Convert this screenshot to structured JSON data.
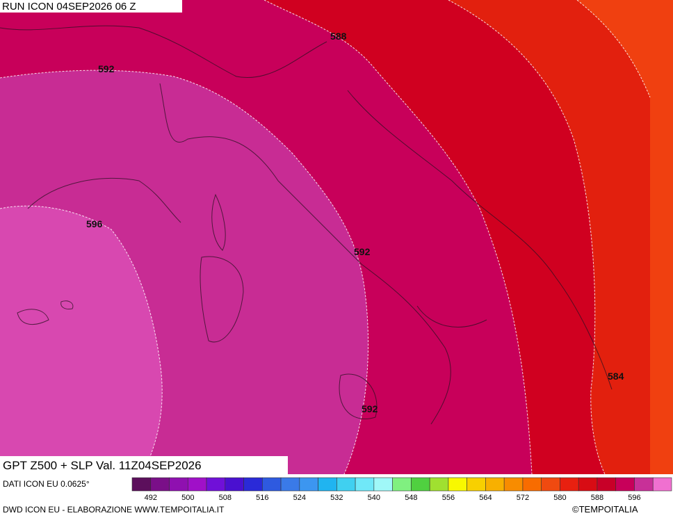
{
  "header": {
    "run": "RUN ICON 04SEP2026 06 Z"
  },
  "contour_labels": [
    "588",
    "592",
    "596",
    "592",
    "592",
    "584"
  ],
  "caption": {
    "title": "GPT Z500 + SLP Val. 11Z04SEP2026",
    "source": "DATI ICON EU 0.0625°"
  },
  "colorbar": {
    "lim": [
      488,
      604
    ],
    "ticks": [
      492,
      500,
      508,
      516,
      524,
      532,
      540,
      548,
      556,
      564,
      572,
      580,
      588,
      596
    ],
    "colors": [
      "#5c0f5c",
      "#7a0f88",
      "#8f10b0",
      "#a010c8",
      "#7010d8",
      "#4a10d0",
      "#2a2ad8",
      "#2e5ae0",
      "#3a7ae8",
      "#3c96f0",
      "#20b4f0",
      "#40d0f0",
      "#70e8f8",
      "#a0f8f8",
      "#80f080",
      "#50d040",
      "#a0e030",
      "#f8f800",
      "#f8d000",
      "#f8b000",
      "#f88c00",
      "#f86c00",
      "#f04a10",
      "#e82010",
      "#d80c14",
      "#c80028",
      "#c8005a",
      "#c83098",
      "#f070d0"
    ]
  },
  "footer": {
    "credit": "DWD ICON EU - ELABORAZIONE WWW.TEMPOITALIA.IT",
    "copyright": "©TEMPOITALIA"
  }
}
